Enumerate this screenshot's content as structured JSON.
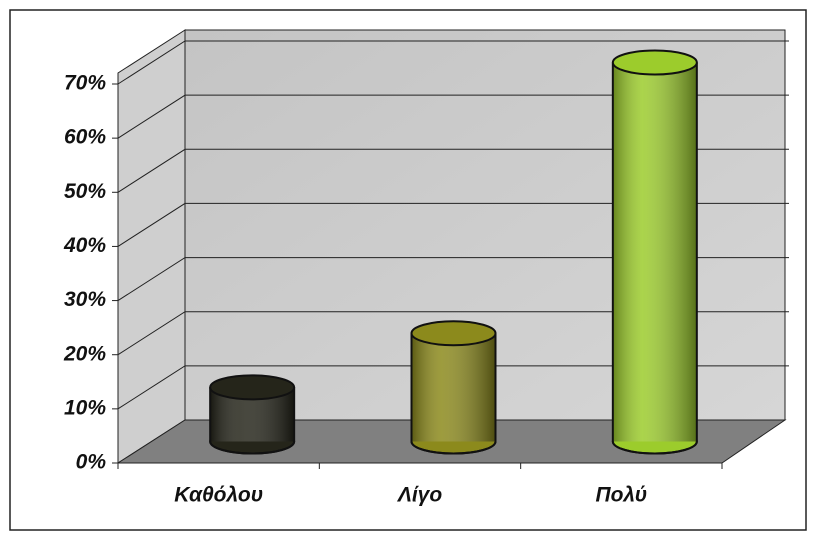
{
  "chart_data": {
    "type": "bar3d",
    "categories": [
      "Καθόλου",
      "Λίγο",
      "Πολύ"
    ],
    "values": [
      10,
      20,
      70
    ],
    "colors": [
      "#25251a",
      "#8c8a1c",
      "#9ccc2c"
    ],
    "ylim": [
      0,
      70
    ],
    "yticks": [
      {
        "value": 0,
        "label": "0%"
      },
      {
        "value": 10,
        "label": "10%"
      },
      {
        "value": 20,
        "label": "20%"
      },
      {
        "value": 30,
        "label": "30%"
      },
      {
        "value": 40,
        "label": "40%"
      },
      {
        "value": 50,
        "label": "50%"
      },
      {
        "value": 60,
        "label": "60%"
      },
      {
        "value": 70,
        "label": "70%"
      }
    ],
    "grid": true
  }
}
